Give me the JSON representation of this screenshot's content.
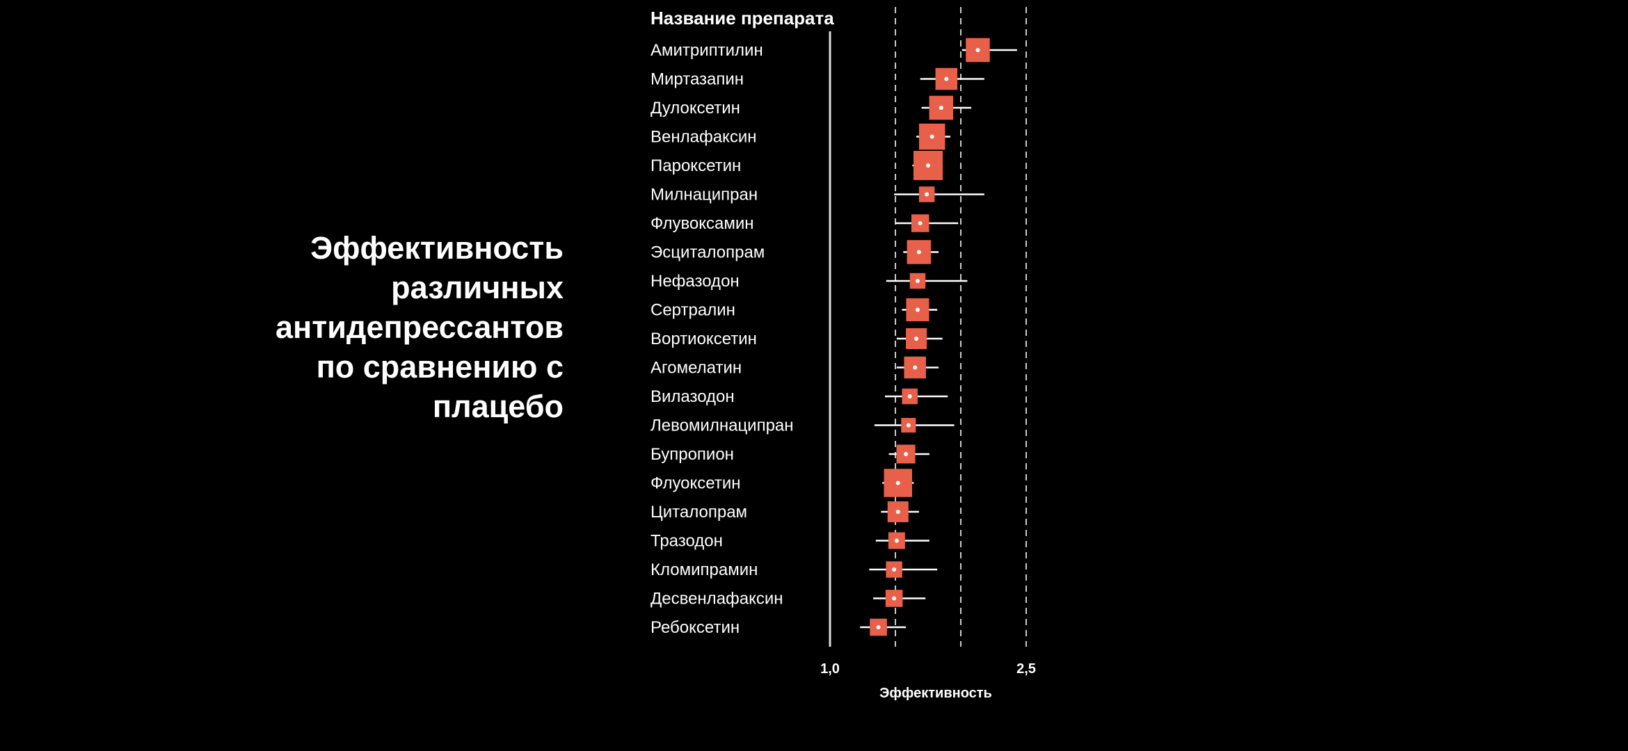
{
  "slide": {
    "title_lines": [
      "Эффективность",
      "различных",
      "антидепрессантов",
      "по сравнению с",
      "плацебо"
    ]
  },
  "colors": {
    "background": "#000000",
    "marker": "#e8604a",
    "whisker": "#ffffff",
    "text": "#ffffff",
    "reference_lines": "#cccccc"
  },
  "chart_data": {
    "type": "forest",
    "column_header": "Название препарата",
    "xlabel": "Эффективность",
    "xlim": [
      1.0,
      2.5
    ],
    "xticks": [
      {
        "value": 1.0,
        "label": "1,0"
      },
      {
        "value": 2.5,
        "label": "2,5"
      }
    ],
    "reference_lines": [
      1.5,
      2.0,
      2.5
    ],
    "rows": [
      {
        "drug": "Амитриптилин",
        "estimate": 2.13,
        "ci_low": 2.01,
        "ci_high": 2.43,
        "weight": 0.75
      },
      {
        "drug": "Миртазапин",
        "estimate": 1.89,
        "ci_low": 1.69,
        "ci_high": 2.18,
        "weight": 0.65
      },
      {
        "drug": "Дулоксетин",
        "estimate": 1.85,
        "ci_low": 1.7,
        "ci_high": 2.08,
        "weight": 0.75
      },
      {
        "drug": "Венлафаксин",
        "estimate": 1.78,
        "ci_low": 1.66,
        "ci_high": 1.92,
        "weight": 0.85
      },
      {
        "drug": "Пароксетин",
        "estimate": 1.75,
        "ci_low": 1.63,
        "ci_high": 1.85,
        "weight": 1.0
      },
      {
        "drug": "Милнаципран",
        "estimate": 1.74,
        "ci_low": 1.49,
        "ci_high": 2.18,
        "weight": 0.35
      },
      {
        "drug": "Флувоксамин",
        "estimate": 1.69,
        "ci_low": 1.5,
        "ci_high": 1.98,
        "weight": 0.45
      },
      {
        "drug": "Эсциталопрам",
        "estimate": 1.68,
        "ci_low": 1.56,
        "ci_high": 1.83,
        "weight": 0.75
      },
      {
        "drug": "Нефазодон",
        "estimate": 1.67,
        "ci_low": 1.43,
        "ci_high": 2.05,
        "weight": 0.35
      },
      {
        "drug": "Сертралин",
        "estimate": 1.67,
        "ci_low": 1.55,
        "ci_high": 1.82,
        "weight": 0.7
      },
      {
        "drug": "Вортиоксетин",
        "estimate": 1.66,
        "ci_low": 1.51,
        "ci_high": 1.86,
        "weight": 0.6
      },
      {
        "drug": "Агомелатин",
        "estimate": 1.65,
        "ci_low": 1.51,
        "ci_high": 1.83,
        "weight": 0.65
      },
      {
        "drug": "Вилазодон",
        "estimate": 1.61,
        "ci_low": 1.42,
        "ci_high": 1.9,
        "weight": 0.35
      },
      {
        "drug": "Левомилнаципран",
        "estimate": 1.6,
        "ci_low": 1.34,
        "ci_high": 1.95,
        "weight": 0.3
      },
      {
        "drug": "Бупропион",
        "estimate": 1.58,
        "ci_low": 1.45,
        "ci_high": 1.76,
        "weight": 0.5
      },
      {
        "drug": "Флуоксетин",
        "estimate": 1.52,
        "ci_low": 1.4,
        "ci_high": 1.64,
        "weight": 0.95
      },
      {
        "drug": "Циталопрам",
        "estimate": 1.52,
        "ci_low": 1.39,
        "ci_high": 1.68,
        "weight": 0.6
      },
      {
        "drug": "Тразодон",
        "estimate": 1.51,
        "ci_low": 1.35,
        "ci_high": 1.76,
        "weight": 0.4
      },
      {
        "drug": "Кломипрамин",
        "estimate": 1.49,
        "ci_low": 1.3,
        "ci_high": 1.82,
        "weight": 0.38
      },
      {
        "drug": "Десвенлафаксин",
        "estimate": 1.49,
        "ci_low": 1.33,
        "ci_high": 1.73,
        "weight": 0.42
      },
      {
        "drug": "Ребоксетин",
        "estimate": 1.37,
        "ci_low": 1.23,
        "ci_high": 1.58,
        "weight": 0.42
      }
    ]
  }
}
